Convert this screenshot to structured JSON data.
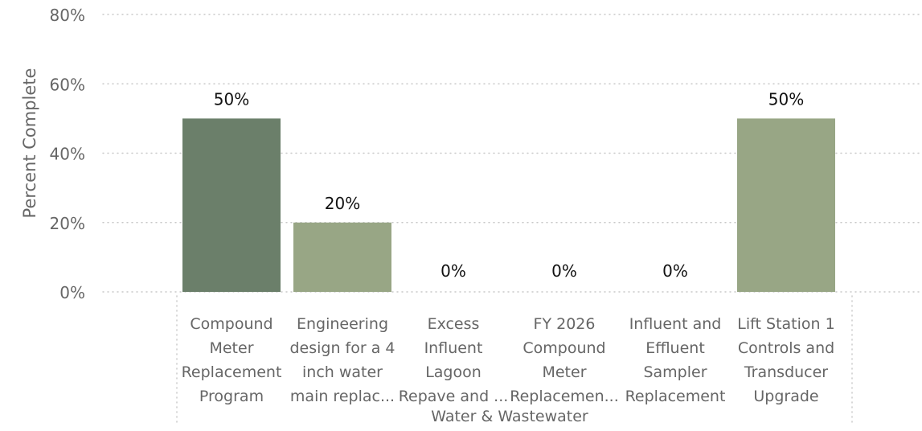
{
  "chart_data": {
    "type": "bar",
    "title": "",
    "ylabel": "Percent Complete",
    "xlabel": "",
    "group_label": "Water & Wastewater",
    "ylim": [
      0,
      80
    ],
    "yticks": [
      "0%",
      "20%",
      "40%",
      "60%",
      "80%"
    ],
    "ytick_values": [
      0,
      20,
      40,
      60,
      80
    ],
    "grid": true,
    "categories": [
      [
        "Compound",
        "Meter",
        "Replacement",
        "Program"
      ],
      [
        "Engineering",
        "design for a 4",
        "inch water",
        "main replac..."
      ],
      [
        "Excess",
        "Influent",
        "Lagoon",
        "Repave and ..."
      ],
      [
        "FY 2026",
        "Compound",
        "Meter",
        "Replacemen..."
      ],
      [
        "Influent and",
        "Effluent",
        "Sampler",
        "Replacement"
      ],
      [
        "Lift Station 1",
        "Controls and",
        "Transducer",
        "Upgrade"
      ]
    ],
    "values": [
      50,
      20,
      0,
      0,
      0,
      50
    ],
    "value_labels": [
      "50%",
      "20%",
      "0%",
      "0%",
      "0%",
      "50%"
    ],
    "colors": [
      "#6b7f6a",
      "#98a685",
      "#98a685",
      "#98a685",
      "#98a685",
      "#98a685"
    ],
    "grid_color": "#c8c8c8",
    "label_color": "#666666",
    "value_label_color": "#111111"
  }
}
